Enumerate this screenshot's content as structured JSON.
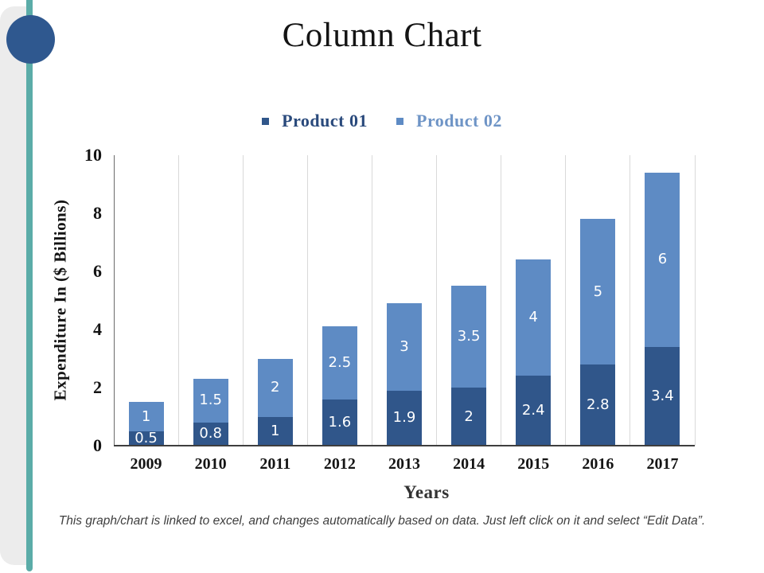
{
  "slide": {
    "title": "Column Chart",
    "caption": "This graph/chart is linked to excel, and changes automatically based on data. Just left click on it and select “Edit Data”.",
    "decor": {
      "left_band_color": "#ECECEC",
      "accent_line_color": "#5BACA8",
      "circle_color": "#2F588F"
    }
  },
  "chart_data": {
    "type": "bar",
    "stacked": true,
    "title": "",
    "categories": [
      "2009",
      "2010",
      "2011",
      "2012",
      "2013",
      "2014",
      "2015",
      "2016",
      "2017"
    ],
    "series": [
      {
        "name": "Product 01",
        "color": "#30568A",
        "legend_text_color": "#2A4A7C",
        "values": [
          0.5,
          0.8,
          1,
          1.6,
          1.9,
          2,
          2.4,
          2.8,
          3.4
        ]
      },
      {
        "name": "Product 02",
        "color": "#5E8BC4",
        "legend_text_color": "#6E94C6",
        "values": [
          1,
          1.5,
          2,
          2.5,
          3,
          3.5,
          4,
          5,
          6
        ]
      }
    ],
    "xlabel": "Years",
    "ylabel": "Expenditure In ($ Billions)",
    "ylim": [
      0,
      10
    ],
    "yticks": [
      0,
      2,
      4,
      6,
      8,
      10
    ],
    "gridlines": "vertical",
    "gridline_color": "#D9D9D9",
    "legend_position": "top",
    "data_labels": true,
    "data_label_color": "#FFFFFF"
  }
}
